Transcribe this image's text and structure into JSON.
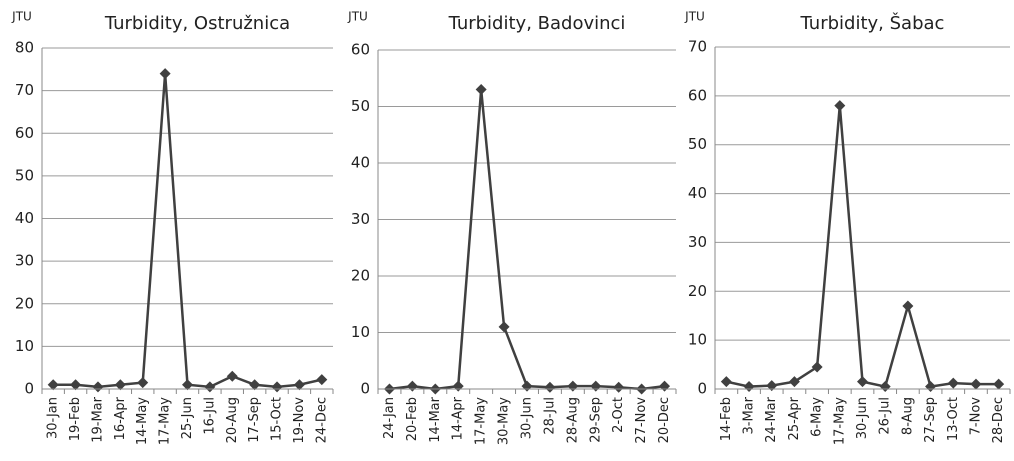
{
  "chart_data": [
    {
      "type": "line",
      "title": "Turbidity, Ostružnica",
      "y_label": "JTU",
      "categories": [
        "30-Jan",
        "19-Feb",
        "19-Mar",
        "16-Apr",
        "14-May",
        "17-May",
        "25-Jun",
        "16-Jul",
        "20-Aug",
        "17-Sep",
        "15-Oct",
        "19-Nov",
        "24-Dec"
      ],
      "series": [
        {
          "name": "Turbidity",
          "color": "#404040",
          "values": [
            1,
            1,
            0.5,
            1,
            1.5,
            74,
            1,
            0.5,
            3,
            1,
            0.5,
            1,
            2.2
          ]
        }
      ],
      "ylim": [
        0,
        80
      ],
      "yticks": [
        0,
        10,
        20,
        30,
        40,
        50,
        60,
        70,
        80
      ],
      "grid": true
    },
    {
      "type": "line",
      "title": "Turbidity, Badovinci",
      "y_label": "JTU",
      "categories": [
        "24-Jan",
        "20-Feb",
        "14-Mar",
        "14-Apr",
        "17-May",
        "30-May",
        "30-Jun",
        "28-Jul",
        "28-Aug",
        "29-Sep",
        "2-Oct",
        "27-Nov",
        "20-Dec"
      ],
      "series": [
        {
          "name": "Turbidity",
          "color": "#404040",
          "values": [
            0,
            0.5,
            0,
            0.5,
            53,
            11,
            0.5,
            0.3,
            0.5,
            0.5,
            0.3,
            0,
            0.5
          ]
        }
      ],
      "ylim": [
        0,
        60
      ],
      "yticks": [
        0,
        10,
        20,
        30,
        40,
        50,
        60
      ],
      "grid": true
    },
    {
      "type": "line",
      "title": "Turbidity, Šabac",
      "y_label": "JTU",
      "categories": [
        "14-Feb",
        "3-Mar",
        "24-Mar",
        "25-Apr",
        "6-May",
        "17-May",
        "30-Jun",
        "26-Jul",
        "8-Aug",
        "27-Sep",
        "13-Oct",
        "7-Nov",
        "28-Dec"
      ],
      "series": [
        {
          "name": "Turbidity",
          "color": "#404040",
          "values": [
            1.5,
            0.5,
            0.7,
            1.5,
            4.5,
            58,
            1.5,
            0.5,
            17,
            0.5,
            1.2,
            1,
            1
          ]
        }
      ],
      "ylim": [
        0,
        70
      ],
      "yticks": [
        0,
        10,
        20,
        30,
        40,
        50,
        60,
        70
      ],
      "grid": true
    }
  ]
}
